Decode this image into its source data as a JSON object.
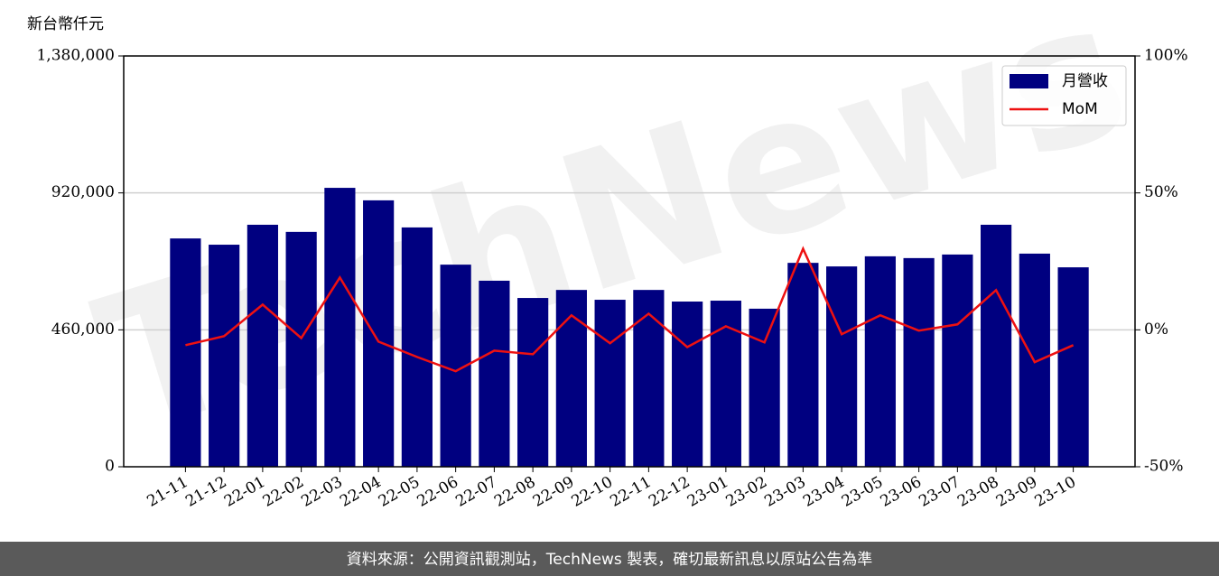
{
  "chart_data": {
    "type": "bar_line",
    "ylabel": "新台幣仟元",
    "watermark": "TechNews",
    "footer": "資料來源：公開資訊觀測站，TechNews 製表，確切最新訊息以原站公告為準",
    "categories": [
      "21-11",
      "21-12",
      "22-01",
      "22-02",
      "22-03",
      "22-04",
      "22-05",
      "22-06",
      "22-07",
      "22-08",
      "22-09",
      "22-10",
      "22-11",
      "22-12",
      "23-01",
      "23-02",
      "23-03",
      "23-04",
      "23-05",
      "23-06",
      "23-07",
      "23-08",
      "23-09",
      "23-10"
    ],
    "series": [
      {
        "name": "月營收",
        "type": "bar",
        "color": "#000080",
        "values": [
          767000,
          746000,
          813000,
          789000,
          937000,
          895000,
          804000,
          679000,
          625000,
          567000,
          594000,
          561000,
          594000,
          555000,
          558000,
          531000,
          685000,
          673000,
          707000,
          701000,
          713000,
          813000,
          716000,
          670000
        ]
      },
      {
        "name": "MoM",
        "type": "line",
        "axis": "y2",
        "color": "#ee1111",
        "values": [
          -5.6,
          -2.3,
          9.2,
          -3.0,
          19.1,
          -4.3,
          -9.9,
          -15.1,
          -7.6,
          -8.9,
          5.3,
          -4.9,
          5.9,
          -6.3,
          1.3,
          -4.6,
          29.6,
          -1.6,
          5.3,
          -0.3,
          2.0,
          14.5,
          -11.8,
          -5.6
        ]
      }
    ],
    "ylim": [
      0,
      1380000
    ],
    "yticks": [
      0,
      {
        "value": 460000,
        "label": "460,000"
      },
      {
        "value": 920000,
        "label": "920,000"
      },
      {
        "value": 1380000,
        "label": "1,380,000"
      }
    ],
    "y2lim": [
      -50,
      100
    ],
    "y2ticks": [
      {
        "value": -50,
        "label": "-50%"
      },
      {
        "value": 0,
        "label": "0%"
      },
      {
        "value": 50,
        "label": "50%"
      },
      {
        "value": 100,
        "label": "100%"
      }
    ],
    "grid": true,
    "legend": "upper right"
  }
}
